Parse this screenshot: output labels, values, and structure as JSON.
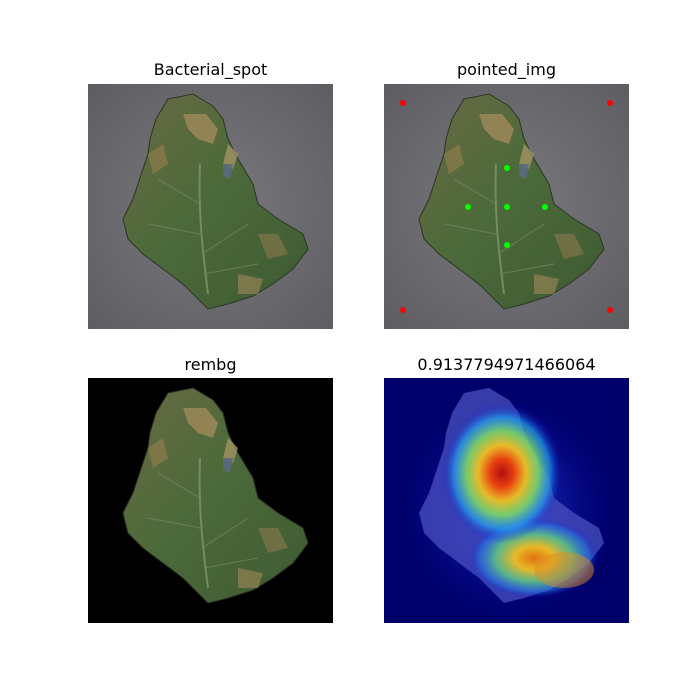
{
  "panels": [
    {
      "title": "Bacterial_spot"
    },
    {
      "title": "pointed_img"
    },
    {
      "title": "rembg"
    },
    {
      "title": "0.9137794971466064"
    }
  ],
  "colors": {
    "background_gray": "#707074",
    "leaf_green": "#4f6a3c",
    "leaf_brown": "#9a7b4a",
    "marker_red": "#ff0000",
    "marker_green": "#00ff00",
    "heatmap_bg": "#00006a"
  }
}
